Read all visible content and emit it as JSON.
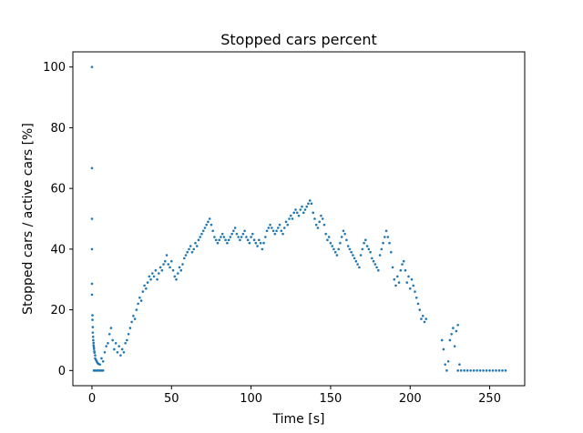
{
  "chart_data": {
    "type": "scatter",
    "title": "Stopped cars percent",
    "xlabel": "Time [s]",
    "ylabel": "Stopped cars / active cars [%]",
    "xlim": [
      -12,
      272
    ],
    "ylim": [
      -5,
      105
    ],
    "xticks": [
      0,
      50,
      100,
      150,
      200,
      250
    ],
    "yticks": [
      0,
      20,
      40,
      60,
      80,
      100
    ],
    "grid": false,
    "legend": "none",
    "series": [
      {
        "color": "#1f77b4",
        "points": [
          [
            0,
            100
          ],
          [
            0,
            66.7
          ],
          [
            0,
            50
          ],
          [
            0,
            40
          ],
          [
            0,
            28.6
          ],
          [
            0,
            25
          ],
          [
            0.3,
            18.2
          ],
          [
            0.3,
            16.7
          ],
          [
            0.5,
            14.3
          ],
          [
            0.5,
            12.5
          ],
          [
            0.7,
            11.1
          ],
          [
            0.8,
            10
          ],
          [
            1,
            9.1
          ],
          [
            1,
            8.3
          ],
          [
            1.2,
            7.7
          ],
          [
            1.3,
            7.1
          ],
          [
            1.5,
            6.3
          ],
          [
            1.6,
            5.9
          ],
          [
            2,
            5
          ],
          [
            2,
            4
          ],
          [
            2.5,
            3.5
          ],
          [
            3,
            3
          ],
          [
            3.5,
            2.5
          ],
          [
            4,
            2.2
          ],
          [
            5,
            2
          ],
          [
            1.2,
            0
          ],
          [
            2,
            0
          ],
          [
            3,
            0
          ],
          [
            4,
            0
          ],
          [
            5,
            0
          ],
          [
            6,
            0
          ],
          [
            7,
            0
          ],
          [
            6,
            4
          ],
          [
            7,
            3
          ],
          [
            8,
            6
          ],
          [
            9,
            8
          ],
          [
            10,
            9
          ],
          [
            11,
            12
          ],
          [
            12,
            14
          ],
          [
            13,
            10
          ],
          [
            14,
            7
          ],
          [
            15,
            9
          ],
          [
            16,
            6
          ],
          [
            17,
            8
          ],
          [
            18,
            5
          ],
          [
            19,
            7
          ],
          [
            20,
            6
          ],
          [
            21,
            9
          ],
          [
            22,
            10
          ],
          [
            23,
            12
          ],
          [
            24,
            14
          ],
          [
            25,
            16
          ],
          [
            26,
            18
          ],
          [
            27,
            17
          ],
          [
            28,
            20
          ],
          [
            29,
            22
          ],
          [
            30,
            24
          ],
          [
            31,
            23
          ],
          [
            32,
            26
          ],
          [
            33,
            28
          ],
          [
            34,
            27
          ],
          [
            35,
            29
          ],
          [
            36,
            31
          ],
          [
            37,
            30
          ],
          [
            38,
            32
          ],
          [
            39,
            31
          ],
          [
            40,
            33
          ],
          [
            41,
            30
          ],
          [
            42,
            32
          ],
          [
            43,
            34
          ],
          [
            44,
            33
          ],
          [
            45,
            35
          ],
          [
            46,
            36
          ],
          [
            47,
            38
          ],
          [
            48,
            35
          ],
          [
            49,
            34
          ],
          [
            50,
            36
          ],
          [
            51,
            33
          ],
          [
            52,
            31
          ],
          [
            53,
            30
          ],
          [
            54,
            32
          ],
          [
            55,
            34
          ],
          [
            56,
            33
          ],
          [
            57,
            35
          ],
          [
            58,
            37
          ],
          [
            59,
            38
          ],
          [
            60,
            39
          ],
          [
            61,
            40
          ],
          [
            62,
            41
          ],
          [
            63,
            39
          ],
          [
            64,
            40
          ],
          [
            65,
            42
          ],
          [
            66,
            41
          ],
          [
            67,
            43
          ],
          [
            68,
            44
          ],
          [
            69,
            45
          ],
          [
            70,
            46
          ],
          [
            71,
            47
          ],
          [
            72,
            48
          ],
          [
            73,
            49
          ],
          [
            74,
            50
          ],
          [
            75,
            48
          ],
          [
            76,
            46
          ],
          [
            77,
            44
          ],
          [
            78,
            43
          ],
          [
            79,
            42
          ],
          [
            80,
            43
          ],
          [
            81,
            44
          ],
          [
            82,
            45
          ],
          [
            83,
            44
          ],
          [
            84,
            43
          ],
          [
            85,
            42
          ],
          [
            86,
            43
          ],
          [
            87,
            44
          ],
          [
            88,
            45
          ],
          [
            89,
            46
          ],
          [
            90,
            47
          ],
          [
            91,
            45
          ],
          [
            92,
            44
          ],
          [
            93,
            43
          ],
          [
            94,
            44
          ],
          [
            95,
            45
          ],
          [
            96,
            46
          ],
          [
            97,
            44
          ],
          [
            98,
            43
          ],
          [
            99,
            42
          ],
          [
            100,
            44
          ],
          [
            101,
            45
          ],
          [
            102,
            43
          ],
          [
            103,
            42
          ],
          [
            104,
            41
          ],
          [
            105,
            43
          ],
          [
            106,
            42
          ],
          [
            107,
            40
          ],
          [
            108,
            42
          ],
          [
            109,
            44
          ],
          [
            110,
            46
          ],
          [
            111,
            47
          ],
          [
            112,
            48
          ],
          [
            113,
            47
          ],
          [
            114,
            46
          ],
          [
            115,
            45
          ],
          [
            116,
            46
          ],
          [
            117,
            47
          ],
          [
            118,
            48
          ],
          [
            119,
            46
          ],
          [
            120,
            45
          ],
          [
            121,
            47
          ],
          [
            122,
            49
          ],
          [
            123,
            48
          ],
          [
            124,
            50
          ],
          [
            125,
            51
          ],
          [
            126,
            50
          ],
          [
            127,
            52
          ],
          [
            128,
            53
          ],
          [
            129,
            52
          ],
          [
            130,
            51
          ],
          [
            131,
            53
          ],
          [
            132,
            54
          ],
          [
            133,
            52
          ],
          [
            134,
            53
          ],
          [
            135,
            54
          ],
          [
            136,
            55
          ],
          [
            137,
            56
          ],
          [
            138,
            55
          ],
          [
            139,
            52
          ],
          [
            140,
            50
          ],
          [
            141,
            48
          ],
          [
            142,
            47
          ],
          [
            143,
            49
          ],
          [
            144,
            51
          ],
          [
            145,
            50
          ],
          [
            146,
            48
          ],
          [
            147,
            45
          ],
          [
            148,
            43
          ],
          [
            149,
            44
          ],
          [
            150,
            42
          ],
          [
            151,
            41
          ],
          [
            152,
            40
          ],
          [
            153,
            39
          ],
          [
            154,
            38
          ],
          [
            155,
            40
          ],
          [
            156,
            42
          ],
          [
            157,
            44
          ],
          [
            158,
            46
          ],
          [
            159,
            45
          ],
          [
            160,
            43
          ],
          [
            161,
            41
          ],
          [
            162,
            40
          ],
          [
            163,
            39
          ],
          [
            164,
            38
          ],
          [
            165,
            37
          ],
          [
            166,
            36
          ],
          [
            167,
            35
          ],
          [
            168,
            34
          ],
          [
            169,
            38
          ],
          [
            170,
            40
          ],
          [
            171,
            42
          ],
          [
            172,
            43
          ],
          [
            173,
            41
          ],
          [
            174,
            40
          ],
          [
            175,
            39
          ],
          [
            176,
            37
          ],
          [
            177,
            36
          ],
          [
            178,
            35
          ],
          [
            179,
            34
          ],
          [
            180,
            33
          ],
          [
            181,
            38
          ],
          [
            182,
            40
          ],
          [
            183,
            42
          ],
          [
            184,
            44
          ],
          [
            185,
            46
          ],
          [
            186,
            44
          ],
          [
            187,
            42
          ],
          [
            188,
            39
          ],
          [
            189,
            34
          ],
          [
            190,
            30
          ],
          [
            191,
            28
          ],
          [
            192,
            31
          ],
          [
            193,
            29
          ],
          [
            194,
            33
          ],
          [
            195,
            35
          ],
          [
            196,
            36
          ],
          [
            197,
            33
          ],
          [
            198,
            29
          ],
          [
            199,
            31
          ],
          [
            200,
            27
          ],
          [
            201,
            30
          ],
          [
            202,
            28
          ],
          [
            203,
            26
          ],
          [
            204,
            24
          ],
          [
            205,
            22
          ],
          [
            206,
            20
          ],
          [
            207,
            17
          ],
          [
            208,
            18
          ],
          [
            209,
            16
          ],
          [
            210,
            17
          ],
          [
            220,
            10
          ],
          [
            221,
            7
          ],
          [
            222,
            2
          ],
          [
            223,
            0
          ],
          [
            224,
            3
          ],
          [
            225,
            10
          ],
          [
            226,
            12
          ],
          [
            227,
            14
          ],
          [
            228,
            8
          ],
          [
            229,
            13
          ],
          [
            230,
            15
          ],
          [
            231,
            2
          ],
          [
            230,
            0
          ],
          [
            232,
            0
          ],
          [
            234,
            0
          ],
          [
            236,
            0
          ],
          [
            238,
            0
          ],
          [
            240,
            0
          ],
          [
            242,
            0
          ],
          [
            244,
            0
          ],
          [
            246,
            0
          ],
          [
            248,
            0
          ],
          [
            250,
            0
          ],
          [
            252,
            0
          ],
          [
            254,
            0
          ],
          [
            256,
            0
          ],
          [
            258,
            0
          ],
          [
            260,
            0
          ]
        ]
      }
    ]
  }
}
